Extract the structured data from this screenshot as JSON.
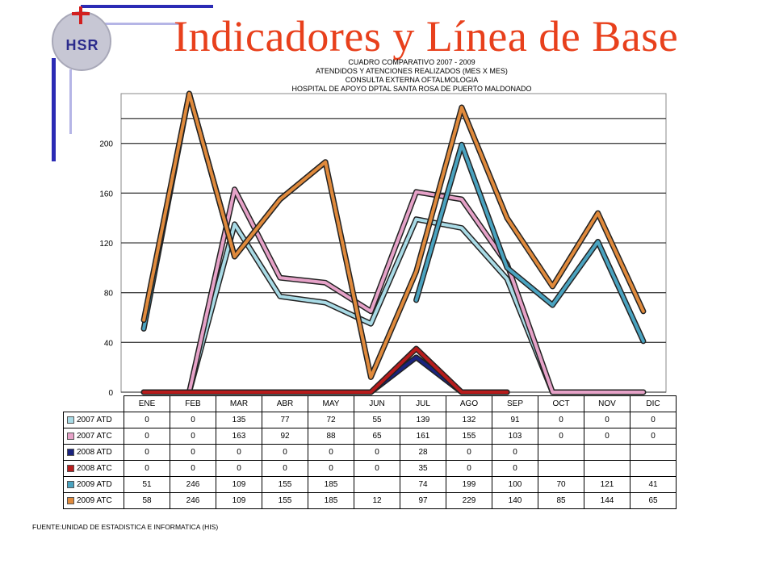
{
  "slide": {
    "title": "Indicadores y Línea de Base",
    "logo_text": "HSR",
    "source": "FUENTE:UNIDAD DE ESTADISTICA E INFORMATICA (HIS)"
  },
  "chart_data": {
    "type": "line",
    "title_lines": [
      "CUADRO COMPARATIVO 2007 - 2009",
      "ATENDIDOS Y ATENCIONES REALIZADOS (MES X MES)",
      "CONSULTA EXTERNA OFTALMOLOGIA",
      "HOSPITAL DE APOYO DPTAL SANTA ROSA DE PUERTO MALDONADO"
    ],
    "categories": [
      "ENE",
      "FEB",
      "MAR",
      "ABR",
      "MAY",
      "JUN",
      "JUL",
      "AGO",
      "SEP",
      "OCT",
      "NOV",
      "DIC"
    ],
    "ylim": [
      0,
      240
    ],
    "yticks": [
      "0",
      "40",
      "80",
      "120",
      "160",
      "200"
    ],
    "grid": true,
    "legend": "table-left",
    "series": [
      {
        "name": "2007 ATD",
        "color": "#a9dbe6",
        "values": [
          0,
          0,
          135,
          77,
          72,
          55,
          139,
          132,
          91,
          0,
          0,
          0
        ],
        "cells": [
          "0",
          "0",
          "135",
          "77",
          "72",
          "55",
          "139",
          "132",
          "91",
          "0",
          "0",
          "0"
        ]
      },
      {
        "name": "2007 ATC",
        "color": "#e6a2c8",
        "values": [
          0,
          0,
          163,
          92,
          88,
          65,
          161,
          155,
          103,
          0,
          0,
          0
        ],
        "cells": [
          "0",
          "0",
          "163",
          "92",
          "88",
          "65",
          "161",
          "155",
          "103",
          "0",
          "0",
          "0"
        ]
      },
      {
        "name": "2008 ATD",
        "color": "#1a237e",
        "values": [
          0,
          0,
          0,
          0,
          0,
          0,
          28,
          0,
          0,
          null,
          null,
          null
        ],
        "cells": [
          "0",
          "0",
          "0",
          "0",
          "0",
          "0",
          "28",
          "0",
          "0",
          "",
          "",
          ""
        ]
      },
      {
        "name": "2008 ATC",
        "color": "#b71c1c",
        "values": [
          0,
          0,
          0,
          0,
          0,
          0,
          35,
          0,
          0,
          null,
          null,
          null
        ],
        "cells": [
          "0",
          "0",
          "0",
          "0",
          "0",
          "0",
          "35",
          "0",
          "0",
          "",
          "",
          ""
        ]
      },
      {
        "name": "2009 ATD",
        "color": "#4aa3c0",
        "values": [
          51,
          246,
          109,
          155,
          185,
          null,
          74,
          199,
          100,
          70,
          121,
          41
        ],
        "cells": [
          "51",
          "246",
          "109",
          "155",
          "185",
          "",
          "74",
          "199",
          "100",
          "70",
          "121",
          "41"
        ]
      },
      {
        "name": "2009 ATC",
        "color": "#e08a3c",
        "values": [
          58,
          246,
          109,
          155,
          185,
          12,
          97,
          229,
          140,
          85,
          144,
          65
        ],
        "cells": [
          "58",
          "246",
          "109",
          "155",
          "185",
          "12",
          "97",
          "229",
          "140",
          "85",
          "144",
          "65"
        ]
      }
    ]
  }
}
